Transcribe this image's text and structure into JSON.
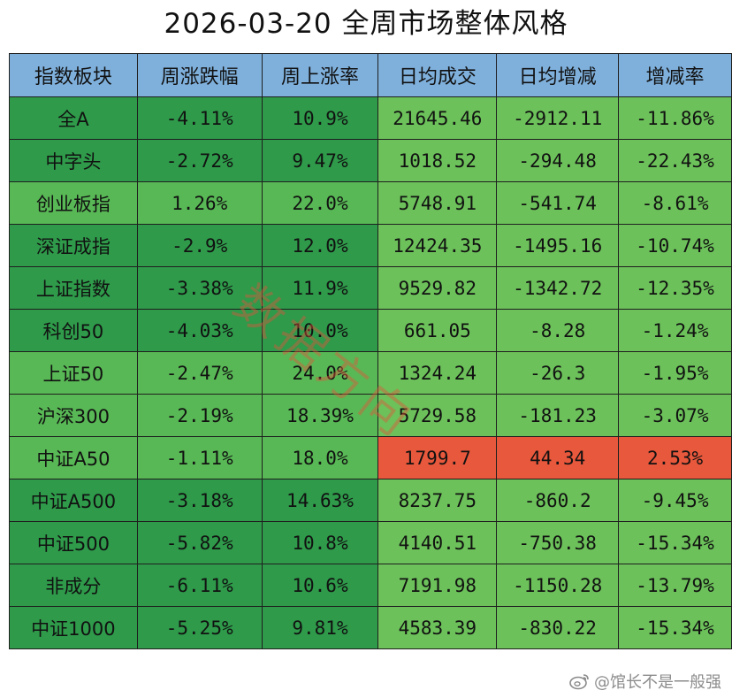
{
  "title": "2026-03-20 全周市场整体风格",
  "watermark": "数据方向",
  "credit": "@馆长不是一般强",
  "colors": {
    "header": "#7fb0dc",
    "dark_green": "#2e9a4a",
    "medium_green": "#58b855",
    "light_green": "#6cc15a",
    "highlight_red": "#e8583c"
  },
  "table": {
    "headers": [
      "指数板块",
      "周涨跌幅",
      "周上涨率",
      "日均成交",
      "日均增减",
      "增减率"
    ],
    "rows": [
      {
        "name": "全A",
        "weekly_change": "-4.11%",
        "weekly_up_rate": "10.9%",
        "avg_volume": "21645.46",
        "avg_change": "-2912.11",
        "change_rate": "-11.86%",
        "shade": "dark",
        "highlight": false
      },
      {
        "name": "中字头",
        "weekly_change": "-2.72%",
        "weekly_up_rate": "9.47%",
        "avg_volume": "1018.52",
        "avg_change": "-294.48",
        "change_rate": "-22.43%",
        "shade": "dark",
        "highlight": false
      },
      {
        "name": "创业板指",
        "weekly_change": "1.26%",
        "weekly_up_rate": "22.0%",
        "avg_volume": "5748.91",
        "avg_change": "-541.74",
        "change_rate": "-8.61%",
        "shade": "medium",
        "highlight": false
      },
      {
        "name": "深证成指",
        "weekly_change": "-2.9%",
        "weekly_up_rate": "12.0%",
        "avg_volume": "12424.35",
        "avg_change": "-1495.16",
        "change_rate": "-10.74%",
        "shade": "dark",
        "highlight": false
      },
      {
        "name": "上证指数",
        "weekly_change": "-3.38%",
        "weekly_up_rate": "11.9%",
        "avg_volume": "9529.82",
        "avg_change": "-1342.72",
        "change_rate": "-12.35%",
        "shade": "dark",
        "highlight": false
      },
      {
        "name": "科创50",
        "weekly_change": "-4.03%",
        "weekly_up_rate": "10.0%",
        "avg_volume": "661.05",
        "avg_change": "-8.28",
        "change_rate": "-1.24%",
        "shade": "dark",
        "highlight": false
      },
      {
        "name": "上证50",
        "weekly_change": "-2.47%",
        "weekly_up_rate": "24.0%",
        "avg_volume": "1324.24",
        "avg_change": "-26.3",
        "change_rate": "-1.95%",
        "shade": "medium",
        "highlight": false
      },
      {
        "name": "沪深300",
        "weekly_change": "-2.19%",
        "weekly_up_rate": "18.39%",
        "avg_volume": "5729.58",
        "avg_change": "-181.23",
        "change_rate": "-3.07%",
        "shade": "medium",
        "highlight": false
      },
      {
        "name": "中证A50",
        "weekly_change": "-1.11%",
        "weekly_up_rate": "18.0%",
        "avg_volume": "1799.7",
        "avg_change": "44.34",
        "change_rate": "2.53%",
        "shade": "medium",
        "highlight": true
      },
      {
        "name": "中证A500",
        "weekly_change": "-3.18%",
        "weekly_up_rate": "14.63%",
        "avg_volume": "8237.75",
        "avg_change": "-860.2",
        "change_rate": "-9.45%",
        "shade": "dark",
        "highlight": false
      },
      {
        "name": "中证500",
        "weekly_change": "-5.82%",
        "weekly_up_rate": "10.8%",
        "avg_volume": "4140.51",
        "avg_change": "-750.38",
        "change_rate": "-15.34%",
        "shade": "dark",
        "highlight": false
      },
      {
        "name": "非成分",
        "weekly_change": "-6.11%",
        "weekly_up_rate": "10.6%",
        "avg_volume": "7191.98",
        "avg_change": "-1150.28",
        "change_rate": "-13.79%",
        "shade": "dark",
        "highlight": false
      },
      {
        "name": "中证1000",
        "weekly_change": "-5.25%",
        "weekly_up_rate": "9.81%",
        "avg_volume": "4583.39",
        "avg_change": "-830.22",
        "change_rate": "-15.34%",
        "shade": "dark",
        "highlight": false
      }
    ]
  }
}
